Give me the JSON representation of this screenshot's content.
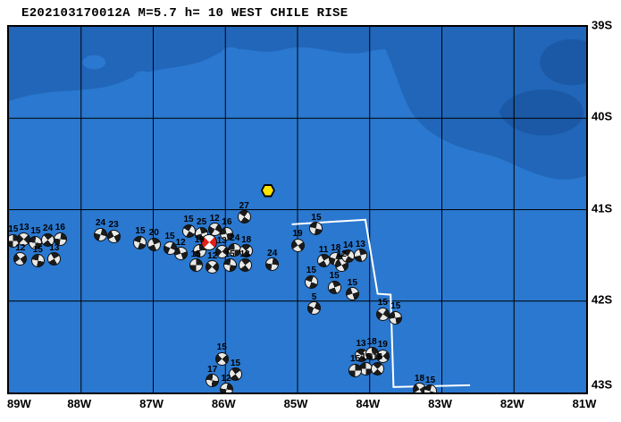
{
  "title": "E202103170012A M=5.7 h= 10 WEST CHILE RISE",
  "map_extent": {
    "lon_min": -89,
    "lon_max": -81,
    "lat_min": -43,
    "lat_max": -39
  },
  "axes": {
    "lon_ticks": [
      {
        "label": "89W",
        "lon": -89
      },
      {
        "label": "88W",
        "lon": -88
      },
      {
        "label": "87W",
        "lon": -87
      },
      {
        "label": "86W",
        "lon": -86
      },
      {
        "label": "85W",
        "lon": -85
      },
      {
        "label": "84W",
        "lon": -84
      },
      {
        "label": "83W",
        "lon": -83
      },
      {
        "label": "82W",
        "lon": -82
      },
      {
        "label": "81W",
        "lon": -81
      }
    ],
    "lat_ticks": [
      {
        "label": "39S",
        "lat": -39
      },
      {
        "label": "40S",
        "lat": -40
      },
      {
        "label": "41S",
        "lat": -41
      },
      {
        "label": "42S",
        "lat": -42
      },
      {
        "label": "43S",
        "lat": -43
      }
    ]
  },
  "colors": {
    "ocean": "#2a78cf",
    "bathy_mid": "#2166b8",
    "bathy_deep": "#1b59a6",
    "ball_dark": "#1b1b1b",
    "ball_light": "#e8e8e6",
    "main_event": "#e31f1a",
    "station": "#ffe400",
    "survey_outline": "#ffffff",
    "grid": "#000000"
  },
  "main_event": {
    "lon": -86.22,
    "lat": -41.36
  },
  "station_marker": {
    "lon": -85.41,
    "lat": -40.79
  },
  "survey_polygon": [
    [
      -85.08,
      -41.16
    ],
    [
      -84.06,
      -41.11
    ],
    [
      -83.89,
      -41.92
    ],
    [
      -83.71,
      -41.93
    ],
    [
      -83.67,
      -42.94
    ],
    [
      -82.61,
      -42.92
    ]
  ],
  "events": [
    {
      "lon": -88.94,
      "lat": -41.34,
      "depth": "15"
    },
    {
      "lon": -88.79,
      "lat": -41.32,
      "depth": "13"
    },
    {
      "lon": -88.63,
      "lat": -41.36,
      "depth": "15"
    },
    {
      "lon": -88.46,
      "lat": -41.33,
      "depth": "24"
    },
    {
      "lon": -88.29,
      "lat": -41.32,
      "depth": "16"
    },
    {
      "lon": -88.84,
      "lat": -41.54,
      "depth": "12"
    },
    {
      "lon": -88.6,
      "lat": -41.56,
      "depth": "15"
    },
    {
      "lon": -88.37,
      "lat": -41.54,
      "depth": "13"
    },
    {
      "lon": -87.73,
      "lat": -41.27,
      "depth": "24"
    },
    {
      "lon": -87.55,
      "lat": -41.29,
      "depth": "23"
    },
    {
      "lon": -87.18,
      "lat": -41.36,
      "depth": "15"
    },
    {
      "lon": -86.99,
      "lat": -41.38,
      "depth": "20"
    },
    {
      "lon": -86.77,
      "lat": -41.42,
      "depth": "15"
    },
    {
      "lon": -86.62,
      "lat": -41.48,
      "depth": "12"
    },
    {
      "lon": -86.51,
      "lat": -41.23,
      "depth": "15"
    },
    {
      "lon": -86.33,
      "lat": -41.26,
      "depth": "25"
    },
    {
      "lon": -86.15,
      "lat": -41.22,
      "depth": "12"
    },
    {
      "lon": -85.98,
      "lat": -41.26,
      "depth": "16"
    },
    {
      "lon": -85.74,
      "lat": -41.08,
      "depth": "27"
    },
    {
      "lon": -86.36,
      "lat": -41.45,
      "depth": "19"
    },
    {
      "lon": -86.05,
      "lat": -41.46,
      "depth": "13"
    },
    {
      "lon": -85.87,
      "lat": -41.44,
      "depth": "24"
    },
    {
      "lon": -85.71,
      "lat": -41.45,
      "depth": "18"
    },
    {
      "lon": -86.41,
      "lat": -41.61,
      "depth": "15"
    },
    {
      "lon": -86.18,
      "lat": -41.63,
      "depth": "12"
    },
    {
      "lon": -85.94,
      "lat": -41.61,
      "depth": "15"
    },
    {
      "lon": -85.73,
      "lat": -41.61,
      "depth": "13"
    },
    {
      "lon": -85.35,
      "lat": -41.6,
      "depth": "24"
    },
    {
      "lon": -85.0,
      "lat": -41.39,
      "depth": "19"
    },
    {
      "lon": -84.74,
      "lat": -41.21,
      "depth": "15"
    },
    {
      "lon": -84.64,
      "lat": -41.56,
      "depth": "11"
    },
    {
      "lon": -84.47,
      "lat": -41.54,
      "depth": "18"
    },
    {
      "lon": -84.39,
      "lat": -41.61,
      "depth": "12"
    },
    {
      "lon": -84.81,
      "lat": -41.79,
      "depth": "15"
    },
    {
      "lon": -84.49,
      "lat": -41.85,
      "depth": "15"
    },
    {
      "lon": -84.77,
      "lat": -42.08,
      "depth": "5"
    },
    {
      "lon": -84.24,
      "lat": -41.92,
      "depth": "15"
    },
    {
      "lon": -84.3,
      "lat": -41.51,
      "depth": "14"
    },
    {
      "lon": -84.13,
      "lat": -41.5,
      "depth": "13"
    },
    {
      "lon": -83.82,
      "lat": -42.14,
      "depth": "15"
    },
    {
      "lon": -83.64,
      "lat": -42.18,
      "depth": "15"
    },
    {
      "lon": -84.12,
      "lat": -42.59,
      "depth": "13"
    },
    {
      "lon": -83.97,
      "lat": -42.57,
      "depth": "18"
    },
    {
      "lon": -83.82,
      "lat": -42.6,
      "depth": "19"
    },
    {
      "lon": -84.05,
      "lat": -42.74,
      "depth": "15"
    },
    {
      "lon": -83.89,
      "lat": -42.74,
      "depth": "16"
    },
    {
      "lon": -84.2,
      "lat": -42.76,
      "depth": "15"
    },
    {
      "lon": -86.05,
      "lat": -42.63,
      "depth": "15"
    },
    {
      "lon": -86.18,
      "lat": -42.87,
      "depth": "17"
    },
    {
      "lon": -85.86,
      "lat": -42.8,
      "depth": "15"
    },
    {
      "lon": -85.99,
      "lat": -42.97,
      "depth": "12"
    },
    {
      "lon": -83.31,
      "lat": -42.97,
      "depth": "18"
    },
    {
      "lon": -83.16,
      "lat": -42.99,
      "depth": "15"
    }
  ]
}
